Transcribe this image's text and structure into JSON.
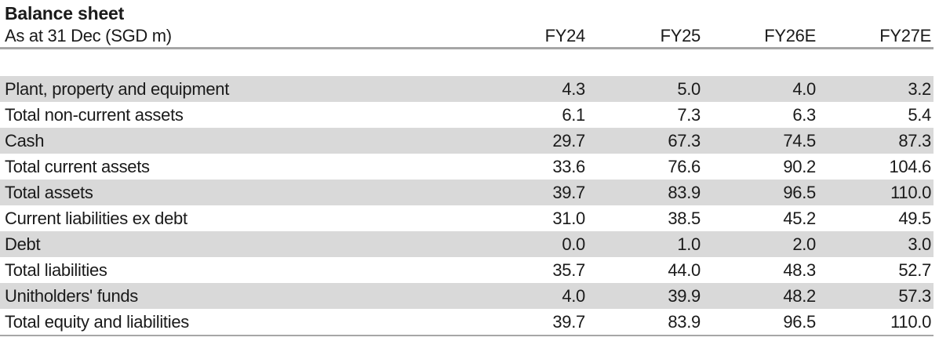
{
  "table": {
    "title": "Balance sheet",
    "subtitle": "As at 31 Dec (SGD m)",
    "columns": [
      "FY24",
      "FY25",
      "FY26E",
      "FY27E"
    ],
    "rows": [
      {
        "label": "Plant, property and equipment",
        "values": [
          "4.3",
          "5.0",
          "4.0",
          "3.2"
        ]
      },
      {
        "label": "Total non-current assets",
        "values": [
          "6.1",
          "7.3",
          "6.3",
          "5.4"
        ]
      },
      {
        "label": "Cash",
        "values": [
          "29.7",
          "67.3",
          "74.5",
          "87.3"
        ]
      },
      {
        "label": "Total current assets",
        "values": [
          "33.6",
          "76.6",
          "90.2",
          "104.6"
        ]
      },
      {
        "label": "Total assets",
        "values": [
          "39.7",
          "83.9",
          "96.5",
          "110.0"
        ]
      },
      {
        "label": "Current liabilities ex debt",
        "values": [
          "31.0",
          "38.5",
          "45.2",
          "49.5"
        ]
      },
      {
        "label": "Debt",
        "values": [
          "0.0",
          "1.0",
          "2.0",
          "3.0"
        ]
      },
      {
        "label": "Total liabilities",
        "values": [
          "35.7",
          "44.0",
          "48.3",
          "52.7"
        ]
      },
      {
        "label": "Unitholders' funds",
        "values": [
          "4.0",
          "39.9",
          "48.2",
          "57.3"
        ]
      },
      {
        "label": "Total equity and liabilities",
        "values": [
          "39.7",
          "83.9",
          "96.5",
          "110.0"
        ]
      }
    ]
  },
  "colors": {
    "row_shade": "#d9d9d9",
    "rule": "#a6a6a6",
    "text": "#1a1a1a"
  }
}
